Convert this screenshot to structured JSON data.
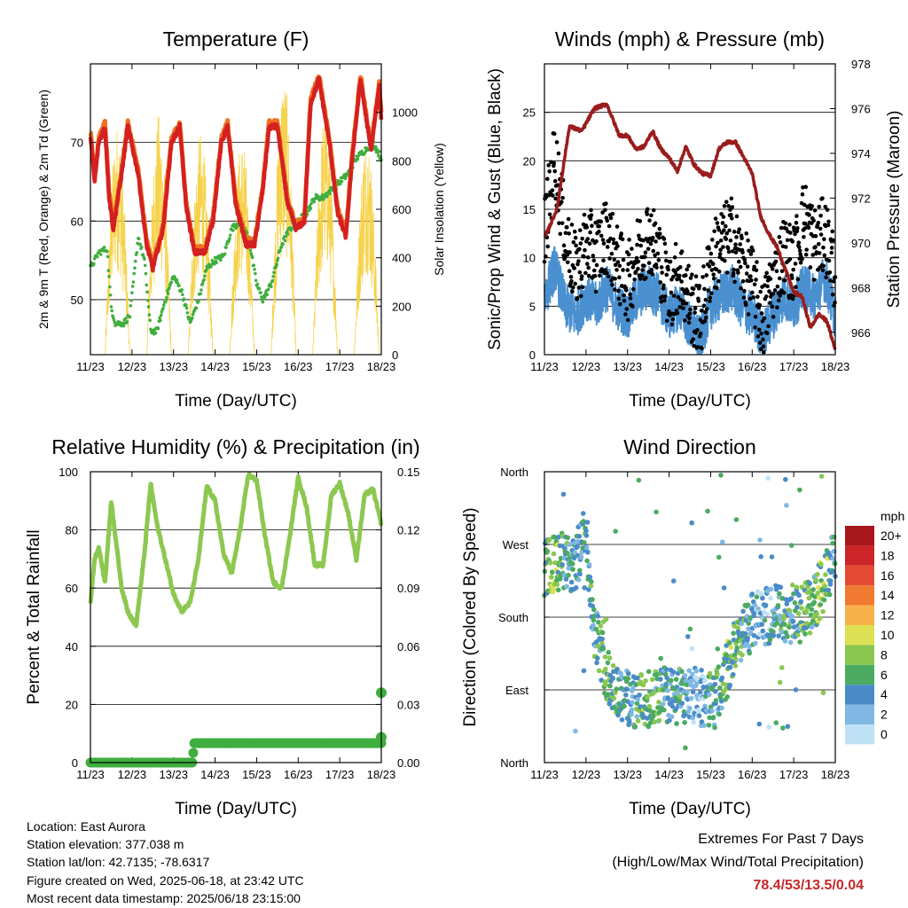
{
  "chart_data": [
    {
      "type": "line",
      "title": "Temperature (F)",
      "xlabel": "Time (Day/UTC)",
      "ylabel_left": "2m & 9m T (Red, Orange) & 2m Td (Green)",
      "ylabel_right": "Solar Insolation (Yellow)",
      "x_ticks": [
        "11/23",
        "12/23",
        "13/23",
        "14/23",
        "15/23",
        "16/23",
        "17/23",
        "18/23"
      ],
      "y_ticks_left": [
        50,
        60,
        70
      ],
      "y_ticks_right": [
        0,
        200,
        400,
        600,
        800,
        1000
      ],
      "ylim_left": [
        43,
        80
      ],
      "ylim_right": [
        0,
        1200
      ],
      "xlim_days": [
        0,
        7
      ],
      "gridlines_y": [
        50,
        60,
        70
      ],
      "series": [
        {
          "name": "2m T",
          "color": "#d42020",
          "x": [
            0,
            0.1,
            0.2,
            0.35,
            0.45,
            0.55,
            0.75,
            0.9,
            1.15,
            1.35,
            1.5,
            1.75,
            1.95,
            2.15,
            2.3,
            2.5,
            2.75,
            2.95,
            3.15,
            3.3,
            3.5,
            3.75,
            3.95,
            4.15,
            4.3,
            4.5,
            4.75,
            4.95,
            5.15,
            5.3,
            5.5,
            5.75,
            5.95,
            6.15,
            6.3,
            6.5,
            6.75,
            6.95,
            7
          ],
          "y": [
            71,
            65,
            70,
            72,
            63,
            59,
            66,
            72,
            66,
            57,
            54,
            59,
            70,
            72,
            62,
            56,
            56,
            60,
            70,
            72,
            62,
            57,
            57,
            64,
            72,
            72,
            62,
            59,
            60,
            75,
            78,
            70,
            61,
            58,
            68,
            78,
            69,
            77,
            73
          ]
        },
        {
          "name": "9m T",
          "color": "#f07020",
          "x": [
            0,
            0.1,
            0.2,
            0.35,
            0.45,
            0.55,
            0.75,
            0.9,
            1.15,
            1.35,
            1.5,
            1.75,
            1.95,
            2.15,
            2.3,
            2.5,
            2.75,
            2.95,
            3.15,
            3.3,
            3.5,
            3.75,
            3.95,
            4.15,
            4.3,
            4.5,
            4.75,
            4.95,
            5.15,
            5.3,
            5.5,
            5.75,
            5.95,
            6.15,
            6.3,
            6.5,
            6.75,
            6.95,
            7
          ],
          "y": [
            71.5,
            65.5,
            70.5,
            72.5,
            63.5,
            59.5,
            66.5,
            72.5,
            66.5,
            57.5,
            54.5,
            59.5,
            70.5,
            72.5,
            62.5,
            56.5,
            56.5,
            60.5,
            70.5,
            72.5,
            62.5,
            57.5,
            57.5,
            64.5,
            72.5,
            72.5,
            62.5,
            59.5,
            60.5,
            75.5,
            78.5,
            70.5,
            61.5,
            58.5,
            68.5,
            78.5,
            69.5,
            77.5,
            73.5
          ]
        },
        {
          "name": "2m Td",
          "color": "#3fae3f",
          "x": [
            0,
            0.2,
            0.4,
            0.5,
            0.6,
            0.8,
            0.95,
            1.15,
            1.3,
            1.45,
            1.6,
            1.8,
            2.0,
            2.2,
            2.4,
            2.6,
            2.8,
            3.0,
            3.2,
            3.4,
            3.6,
            3.8,
            4.0,
            4.15,
            4.35,
            4.6,
            4.8,
            5.0,
            5.2,
            5.4,
            5.6,
            5.8,
            6.0,
            6.2,
            6.4,
            6.6,
            6.8,
            7
          ],
          "y": [
            54,
            56,
            56.5,
            49,
            47,
            47,
            48,
            58,
            55,
            46,
            46,
            50,
            53,
            51,
            47,
            50,
            54,
            55,
            55.5,
            59,
            60,
            58,
            52,
            50,
            52,
            57,
            59,
            60,
            61,
            63,
            63,
            64,
            65,
            66,
            68,
            69,
            70,
            68
          ]
        }
      ],
      "insolation_peaks_day": [
        0.65,
        1.65,
        2.65,
        3.65,
        4.65,
        5.65,
        6.65
      ],
      "insolation_peak_values": [
        960,
        1000,
        920,
        900,
        1180,
        1020,
        940
      ],
      "insolation_color": "#f5d040"
    },
    {
      "type": "line",
      "title": "Winds (mph) & Pressure (mb)",
      "xlabel": "Time (Day/UTC)",
      "ylabel_left": "Sonic/Prop Wind & Gust (Blue, Black)",
      "ylabel_right": "Station Pressure (Maroon)",
      "x_ticks": [
        "11/23",
        "12/23",
        "13/23",
        "14/23",
        "15/23",
        "16/23",
        "17/23",
        "18/23"
      ],
      "y_ticks_left": [
        0,
        5,
        10,
        15,
        20,
        25
      ],
      "y_ticks_right": [
        966,
        968,
        970,
        972,
        974,
        976,
        978
      ],
      "ylim_left": [
        0,
        30
      ],
      "ylim_right": [
        965,
        978
      ],
      "xlim_days": [
        0,
        7
      ],
      "gridlines_y": [
        5,
        10,
        15,
        20,
        25
      ],
      "series": [
        {
          "name": "Station Pressure",
          "color": "#9b1c1c",
          "x": [
            0,
            0.3,
            0.6,
            0.9,
            1.2,
            1.5,
            1.8,
            2.0,
            2.2,
            2.4,
            2.6,
            2.8,
            3.0,
            3.2,
            3.4,
            3.6,
            3.8,
            4.0,
            4.2,
            4.4,
            4.6,
            4.8,
            5.0,
            5.2,
            5.4,
            5.6,
            5.8,
            6.0,
            6.2,
            6.4,
            6.6,
            6.8,
            7
          ],
          "y": [
            970.2,
            971.5,
            975.2,
            975,
            976,
            976.2,
            974.8,
            974.8,
            974.2,
            974.3,
            975,
            974.2,
            973.8,
            973.2,
            974.3,
            973.5,
            973.1,
            973,
            974.2,
            974.5,
            974.5,
            973.8,
            973.1,
            971.2,
            970.4,
            969.8,
            968.8,
            967.8,
            967.6,
            966.2,
            966.8,
            966.5,
            965.2
          ]
        },
        {
          "name": "Sonic/Prop Wind",
          "color": "#4a90d0",
          "x": [
            0,
            0.25,
            0.5,
            0.75,
            1.0,
            1.25,
            1.5,
            1.75,
            2.0,
            2.25,
            2.5,
            2.75,
            3.0,
            3.25,
            3.5,
            3.75,
            4.0,
            4.25,
            4.5,
            4.75,
            5.0,
            5.25,
            5.5,
            5.75,
            6.0,
            6.25,
            6.5,
            6.75,
            7
          ],
          "y": [
            5,
            8,
            4,
            3,
            5,
            4,
            6,
            4,
            3,
            5,
            6,
            5,
            3,
            4,
            2,
            0.5,
            4,
            5,
            6,
            4,
            3,
            1,
            3,
            5,
            4,
            6,
            5,
            7,
            3
          ]
        },
        {
          "name": "Gust",
          "color": "#000000",
          "x": [
            0,
            0.25,
            0.5,
            0.75,
            1.0,
            1.25,
            1.5,
            1.75,
            2.0,
            2.25,
            2.5,
            2.75,
            3.0,
            3.25,
            3.5,
            3.75,
            4.0,
            4.25,
            4.5,
            4.75,
            5.0,
            5.25,
            5.5,
            5.75,
            6.0,
            6.25,
            6.5,
            6.75,
            7
          ],
          "y": [
            12,
            20,
            12,
            8,
            11,
            10,
            12,
            9,
            7,
            10,
            12,
            10,
            6,
            8,
            5,
            3,
            9,
            11,
            12,
            9,
            7,
            3,
            7,
            10,
            9,
            14,
            11,
            12,
            8
          ]
        }
      ]
    },
    {
      "type": "line",
      "title": "Relative Humidity (%) & Precipitation (in)",
      "xlabel": "Time (Day/UTC)",
      "ylabel_left": "Percent & Total Rainfall",
      "x_ticks": [
        "11/23",
        "12/23",
        "13/23",
        "14/23",
        "15/23",
        "16/23",
        "17/23",
        "18/23"
      ],
      "y_ticks_left": [
        0,
        20,
        40,
        60,
        80,
        100
      ],
      "y_ticks_right": [
        "0.00",
        "0.03",
        "0.06",
        "0.09",
        "0.12",
        "0.15"
      ],
      "ylim_left": [
        0,
        100
      ],
      "ylim_right": [
        0,
        0.15
      ],
      "xlim_days": [
        0,
        7
      ],
      "gridlines_y": [
        20,
        40,
        60,
        80
      ],
      "series": [
        {
          "name": "Relative Humidity",
          "color": "#8cc850",
          "x": [
            0,
            0.1,
            0.2,
            0.35,
            0.5,
            0.6,
            0.75,
            0.9,
            1.1,
            1.3,
            1.45,
            1.6,
            1.8,
            2.0,
            2.2,
            2.4,
            2.6,
            2.8,
            3.0,
            3.2,
            3.4,
            3.6,
            3.8,
            4.0,
            4.2,
            4.4,
            4.6,
            4.8,
            5.0,
            5.2,
            5.4,
            5.6,
            5.8,
            6.0,
            6.2,
            6.4,
            6.6,
            6.8,
            7
          ],
          "y": [
            55,
            70,
            74,
            62,
            90,
            78,
            60,
            52,
            47,
            72,
            96,
            82,
            70,
            58,
            52,
            55,
            70,
            95,
            90,
            72,
            65,
            80,
            99,
            97,
            78,
            62,
            60,
            78,
            98,
            88,
            68,
            68,
            92,
            96,
            86,
            70,
            92,
            94,
            82
          ]
        },
        {
          "name": "Total Precipitation",
          "color": "#3fae3f",
          "x": [
            0,
            1,
            2,
            2.45,
            2.5,
            3,
            4,
            5,
            6,
            6.95,
            7
          ],
          "y": [
            0,
            0,
            0,
            0,
            0.01,
            0.01,
            0.01,
            0.01,
            0.01,
            0.01,
            0.036
          ]
        }
      ]
    },
    {
      "type": "scatter",
      "title": "Wind Direction",
      "xlabel": "Time (Day/UTC)",
      "ylabel": "Direction (Colored By Speed)",
      "x_ticks": [
        "11/23",
        "12/23",
        "13/23",
        "14/23",
        "15/23",
        "16/23",
        "17/23",
        "18/23"
      ],
      "y_ticks": [
        "North",
        "East",
        "South",
        "West",
        "North"
      ],
      "ylim_deg": [
        0,
        360
      ],
      "xlim_days": [
        0,
        7
      ],
      "gridlines_y": [
        90,
        180,
        270
      ],
      "direction_trend": {
        "x": [
          0,
          0.2,
          0.45,
          0.7,
          0.9,
          1.0,
          1.1,
          1.25,
          1.5,
          1.75,
          2.0,
          2.3,
          2.6,
          2.9,
          3.2,
          3.5,
          3.8,
          4.1,
          4.4,
          4.7,
          5.0,
          5.3,
          5.6,
          5.9,
          6.2,
          6.5,
          6.8,
          7
        ],
        "y": [
          240,
          245,
          250,
          240,
          270,
          300,
          210,
          160,
          110,
          90,
          80,
          75,
          80,
          85,
          80,
          85,
          80,
          75,
          115,
          150,
          175,
          180,
          185,
          180,
          185,
          200,
          230,
          260
        ]
      },
      "legend": {
        "title": "mph",
        "labels": [
          "20+",
          "18",
          "16",
          "14",
          "12",
          "10",
          "8",
          "6",
          "4",
          "2",
          "0"
        ],
        "colors": [
          "#a8171c",
          "#cc2427",
          "#e34a33",
          "#f07a2f",
          "#f7b04a",
          "#dde053",
          "#8ac750",
          "#4bab60",
          "#4a8bc8",
          "#7fb8e2",
          "#bfe1f5"
        ]
      }
    }
  ],
  "info": {
    "location": "Location: East Aurora",
    "elevation": "Station elevation: 377.038 m",
    "latlon": "Station lat/lon: 42.7135; -78.6317",
    "created": "Figure created on Wed, 2025-06-18, at 23:42 UTC",
    "recent": "Most recent data timestamp: 2025/06/18 23:15:00"
  },
  "extremes": {
    "heading": "Extremes For Past 7 Days",
    "subheading": "(High/Low/Max Wind/Total Precipitation)",
    "values": "78.4/53/13.5/0.04"
  }
}
